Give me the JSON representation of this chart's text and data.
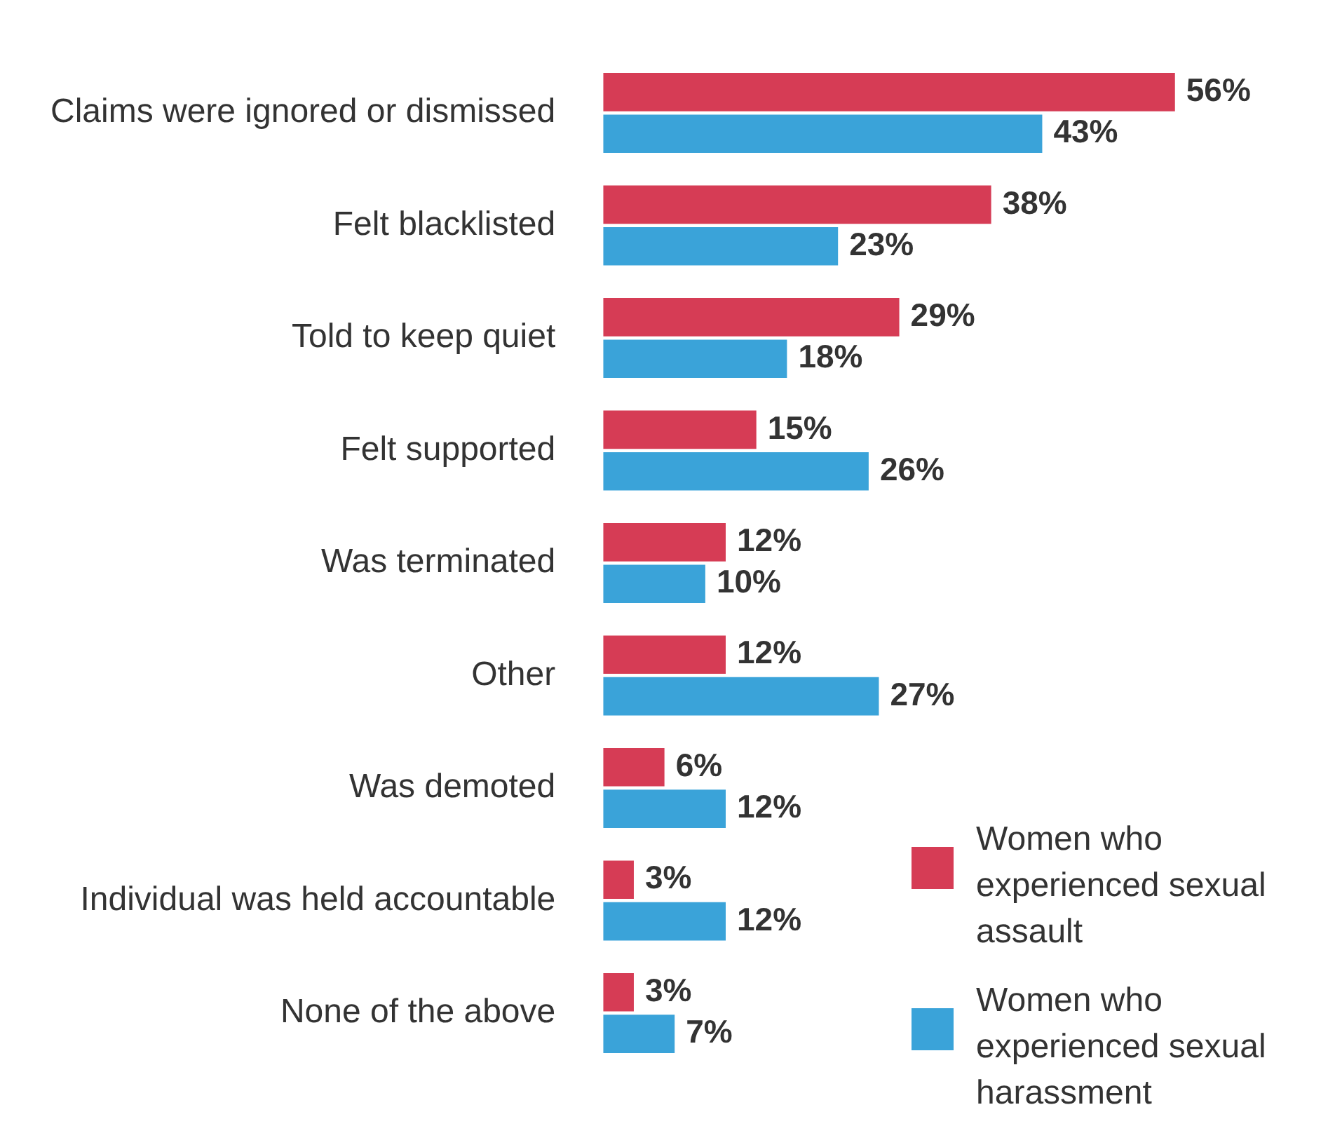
{
  "chart_data": {
    "type": "bar",
    "orientation": "horizontal",
    "legend": "bottom right",
    "categories": [
      "Claims were ignored or dismissed",
      "Felt blacklisted",
      "Told to keep quiet",
      "Felt supported",
      "Was terminated",
      "Other",
      "Was demoted",
      "Individual was held accountable",
      "None of the above"
    ],
    "series": [
      {
        "name": "Women who experienced sexual assault",
        "color": "#d63c55",
        "values": [
          56,
          38,
          29,
          15,
          12,
          12,
          6,
          3,
          3
        ],
        "value_labels": [
          "56%",
          "38%",
          "29%",
          "15%",
          "12%",
          "12%",
          "6%",
          "3%",
          "3%"
        ]
      },
      {
        "name": "Women who experienced sexual harassment",
        "color": "#3aa3d9",
        "values": [
          43,
          23,
          18,
          26,
          10,
          27,
          12,
          12,
          7
        ],
        "value_labels": [
          "43%",
          "23%",
          "18%",
          "26%",
          "10%",
          "27%",
          "12%",
          "12%",
          "7%"
        ]
      }
    ]
  }
}
